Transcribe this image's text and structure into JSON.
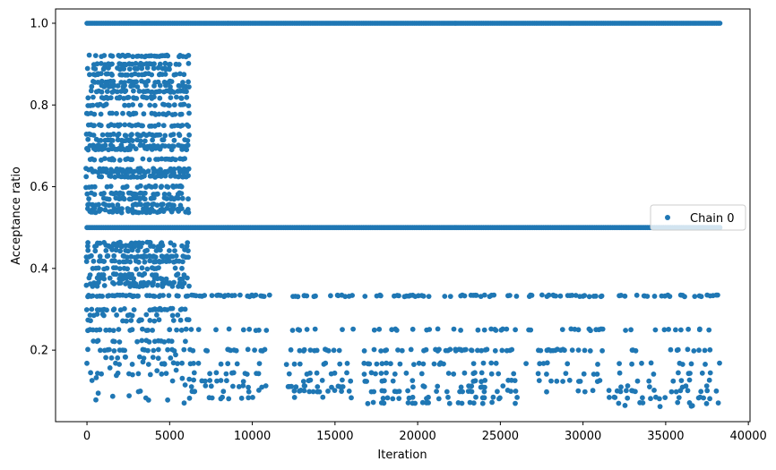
{
  "chart_data": {
    "type": "scatter",
    "xlabel": "Iteration",
    "ylabel": "Acceptance ratio",
    "xlim": [
      -1900,
      40100
    ],
    "ylim": [
      0.025,
      1.035
    ],
    "xticks": [
      0,
      5000,
      10000,
      15000,
      20000,
      25000,
      30000,
      35000,
      40000
    ],
    "xtick_labels": [
      "0",
      "5000",
      "10000",
      "15000",
      "20000",
      "25000",
      "30000",
      "35000",
      "40000"
    ],
    "yticks": [
      0.2,
      0.4,
      0.6,
      0.8,
      1.0
    ],
    "ytick_labels": [
      "0.2",
      "0.4",
      "0.6",
      "0.8",
      "1.0"
    ],
    "grid": false,
    "legend_position": "center-right",
    "series": [
      {
        "name": "Chain 0",
        "color": "#1f77b4",
        "marker": "circle",
        "x_range": [
          0,
          38300
        ],
        "constant_levels": [
          {
            "y": 1.0,
            "x_start": 0,
            "x_end": 38300
          },
          {
            "y": 0.5,
            "x_start": 0,
            "x_end": 38300
          }
        ],
        "segments": [
          {
            "x_start": 0,
            "x_end": 6200,
            "levels": [
              0.92,
              0.9,
              0.889,
              0.875,
              0.857,
              0.846,
              0.833,
              0.818,
              0.8,
              0.778,
              0.75,
              0.727,
              0.714,
              0.7,
              0.692,
              0.667,
              0.643,
              0.636,
              0.625,
              0.6,
              0.583,
              0.571,
              0.556,
              0.545,
              0.538,
              0.462,
              0.455,
              0.444,
              0.429,
              0.417,
              0.4,
              0.385,
              0.375,
              0.364,
              0.357,
              0.333,
              0.3,
              0.286,
              0.273,
              0.25,
              0.222,
              0.2,
              0.182,
              0.167,
              0.143
            ]
          },
          {
            "x_start": 6200,
            "x_end": 11000,
            "levels": [
              0.333,
              0.25,
              0.2,
              0.167,
              0.143,
              0.125,
              0.111,
              0.1,
              0.083
            ]
          },
          {
            "x_start": 12000,
            "x_end": 16100,
            "levels": [
              0.333,
              0.25,
              0.2,
              0.167,
              0.143,
              0.125,
              0.111,
              0.1,
              0.083
            ]
          },
          {
            "x_start": 16600,
            "x_end": 26000,
            "levels": [
              0.333,
              0.25,
              0.2,
              0.167,
              0.143,
              0.125,
              0.111,
              0.1,
              0.083,
              0.071
            ]
          },
          {
            "x_start": 26600,
            "x_end": 31200,
            "levels": [
              0.333,
              0.25,
              0.2,
              0.167,
              0.143,
              0.125,
              0.1
            ]
          },
          {
            "x_start": 31600,
            "x_end": 38300,
            "levels": [
              0.333,
              0.25,
              0.2,
              0.167,
              0.143,
              0.125,
              0.111,
              0.1,
              0.083,
              0.071,
              0.063
            ]
          }
        ]
      }
    ]
  }
}
